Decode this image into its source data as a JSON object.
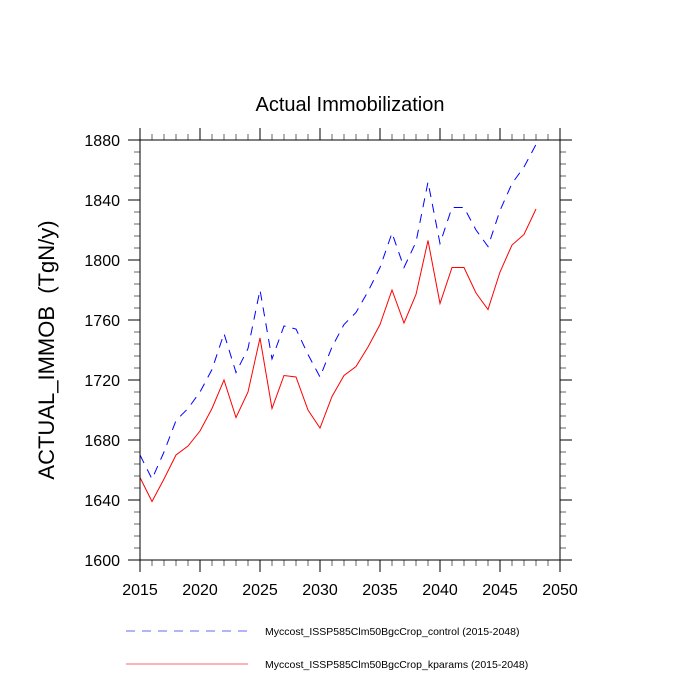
{
  "chart_data": {
    "type": "line",
    "title": "Actual Immobilization",
    "xlabel": "",
    "ylabel": "ACTUAL_IMMOB  (TgN/y)",
    "xlim": [
      2015,
      2050
    ],
    "ylim": [
      1600,
      1880
    ],
    "x_major_ticks": [
      2015,
      2020,
      2025,
      2030,
      2035,
      2040,
      2045,
      2050
    ],
    "x_minor_step": 1,
    "y_major_ticks": [
      1600,
      1640,
      1680,
      1720,
      1760,
      1800,
      1840,
      1880
    ],
    "y_minor_step": 8,
    "grid": false,
    "legend_position": "bottom",
    "x": [
      2015,
      2016,
      2017,
      2018,
      2019,
      2020,
      2021,
      2022,
      2023,
      2024,
      2025,
      2026,
      2027,
      2028,
      2029,
      2030,
      2031,
      2032,
      2033,
      2034,
      2035,
      2036,
      2037,
      2038,
      2039,
      2040,
      2041,
      2042,
      2043,
      2044,
      2045,
      2046,
      2047,
      2048
    ],
    "series": [
      {
        "name": "Myccost_ISSP585Clm50BgcCrop_control (2015-2048)",
        "color": "#0000ff",
        "dash": "dashed",
        "values": [
          1670,
          1654,
          1672,
          1693,
          1701,
          1712,
          1727,
          1751,
          1725,
          1741,
          1780,
          1734,
          1756,
          1754,
          1737,
          1722,
          1742,
          1757,
          1765,
          1779,
          1795,
          1818,
          1795,
          1812,
          1852,
          1811,
          1835,
          1835,
          1820,
          1809,
          1833,
          1851,
          1862,
          1877
        ]
      },
      {
        "name": "Myccost_ISSP585Clm50BgcCrop_kparams (2015-2048)",
        "color": "#ff0000",
        "dash": "solid",
        "values": [
          1655,
          1639,
          1654,
          1670,
          1676,
          1686,
          1701,
          1720,
          1695,
          1712,
          1748,
          1701,
          1723,
          1722,
          1700,
          1688,
          1709,
          1723,
          1729,
          1742,
          1757,
          1780,
          1758,
          1777,
          1813,
          1771,
          1795,
          1795,
          1778,
          1767,
          1792,
          1810,
          1817,
          1834
        ]
      }
    ]
  }
}
